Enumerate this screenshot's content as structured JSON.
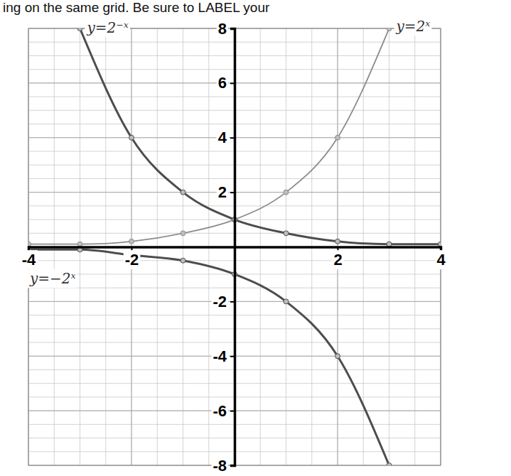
{
  "chart_data": {
    "type": "line",
    "title": "ing on the same grid. Be sure to LABEL your",
    "xlim": [
      -4,
      4
    ],
    "ylim": [
      -8,
      8
    ],
    "xticks": [
      -4,
      -2,
      2,
      4
    ],
    "yticks": [
      -8,
      -6,
      -4,
      -2,
      2,
      4,
      6,
      8
    ],
    "grid": true,
    "series": [
      {
        "name": "y=2ˣ",
        "color": "#8c8c8c",
        "marker": "circle",
        "x": [
          -4,
          -3,
          -2,
          -1,
          0,
          1,
          2,
          3
        ],
        "values": [
          0.1,
          0.1,
          0.2,
          0.5,
          1,
          2,
          4,
          8
        ]
      },
      {
        "name": "y=2⁻ˣ",
        "color": "#4d4d4d",
        "marker": "circle",
        "x": [
          -3,
          -2,
          -1,
          0,
          1,
          2,
          3,
          4
        ],
        "values": [
          8,
          4,
          2,
          1,
          0.5,
          0.2,
          0.1,
          0.1
        ]
      },
      {
        "name": "y=−2ˣ",
        "color": "#4d4d4d",
        "marker": "circle",
        "x": [
          -4,
          -3,
          -2,
          -1,
          0,
          1,
          2,
          3
        ],
        "values": [
          -0.1,
          -0.1,
          -0.3,
          -0.5,
          -1,
          -2,
          -4,
          -8
        ]
      }
    ]
  }
}
